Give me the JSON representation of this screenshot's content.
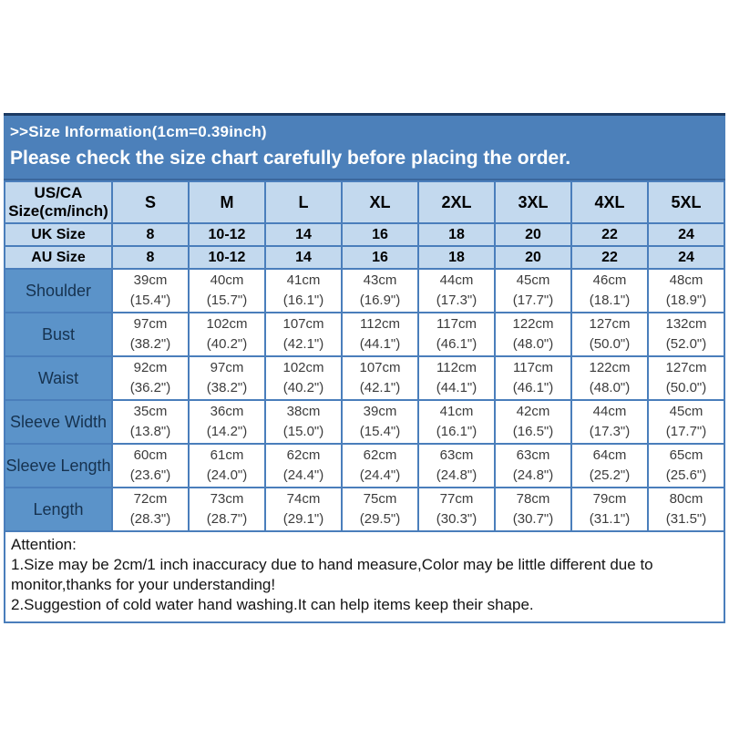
{
  "banner": {
    "line1": ">>Size Information(1cm=0.39inch)",
    "line2": "Please check the size chart carefully before placing the order."
  },
  "table": {
    "corner": {
      "line1": "US/CA",
      "line2": "Size(cm/inch)"
    },
    "size_labels": [
      "S",
      "M",
      "L",
      "XL",
      "2XL",
      "3XL",
      "4XL",
      "5XL"
    ],
    "uk_row": {
      "label": "UK Size",
      "values": [
        "8",
        "10-12",
        "14",
        "16",
        "18",
        "20",
        "22",
        "24"
      ]
    },
    "au_row": {
      "label": "AU Size",
      "values": [
        "8",
        "10-12",
        "14",
        "16",
        "18",
        "20",
        "22",
        "24"
      ]
    },
    "measurements": [
      {
        "label": "Shoulder",
        "cm": [
          "39cm",
          "40cm",
          "41cm",
          "43cm",
          "44cm",
          "45cm",
          "46cm",
          "48cm"
        ],
        "inch": [
          "(15.4\")",
          "(15.7\")",
          "(16.1\")",
          "(16.9\")",
          "(17.3\")",
          "(17.7\")",
          "(18.1\")",
          "(18.9\")"
        ]
      },
      {
        "label": "Bust",
        "cm": [
          "97cm",
          "102cm",
          "107cm",
          "112cm",
          "117cm",
          "122cm",
          "127cm",
          "132cm"
        ],
        "inch": [
          "(38.2\")",
          "(40.2\")",
          "(42.1\")",
          "(44.1\")",
          "(46.1\")",
          "(48.0\")",
          "(50.0\")",
          "(52.0\")"
        ]
      },
      {
        "label": "Waist",
        "cm": [
          "92cm",
          "97cm",
          "102cm",
          "107cm",
          "112cm",
          "117cm",
          "122cm",
          "127cm"
        ],
        "inch": [
          "(36.2\")",
          "(38.2\")",
          "(40.2\")",
          "(42.1\")",
          "(44.1\")",
          "(46.1\")",
          "(48.0\")",
          "(50.0\")"
        ]
      },
      {
        "label": "Sleeve Width",
        "cm": [
          "35cm",
          "36cm",
          "38cm",
          "39cm",
          "41cm",
          "42cm",
          "44cm",
          "45cm"
        ],
        "inch": [
          "(13.8\")",
          "(14.2\")",
          "(15.0\")",
          "(15.4\")",
          "(16.1\")",
          "(16.5\")",
          "(17.3\")",
          "(17.7\")"
        ]
      },
      {
        "label": "Sleeve Length",
        "cm": [
          "60cm",
          "61cm",
          "62cm",
          "62cm",
          "63cm",
          "63cm",
          "64cm",
          "65cm"
        ],
        "inch": [
          "(23.6\")",
          "(24.0\")",
          "(24.4\")",
          "(24.4\")",
          "(24.8\")",
          "(24.8\")",
          "(25.2\")",
          "(25.6\")"
        ]
      },
      {
        "label": "Length",
        "cm": [
          "72cm",
          "73cm",
          "74cm",
          "75cm",
          "77cm",
          "78cm",
          "79cm",
          "80cm"
        ],
        "inch": [
          "(28.3\")",
          "(28.7\")",
          "(29.1\")",
          "(29.5\")",
          "(30.3\")",
          "(30.7\")",
          "(31.1\")",
          "(31.5\")"
        ]
      }
    ]
  },
  "attention": {
    "title": "Attention:",
    "items": [
      "1.Size may be 2cm/1 inch inaccuracy due to hand measure,Color may be little different due to monitor,thanks for your understanding!",
      "2.Suggestion of cold water hand washing.It can help items keep their shape."
    ]
  },
  "colors": {
    "banner_blue": "#4c80ba",
    "banner_dark_border": "#1c3a63",
    "header_light_blue": "#c3d9ee",
    "label_blue": "#5b93c9",
    "border_blue": "#4a7ebb",
    "label_text": "#16324f"
  }
}
